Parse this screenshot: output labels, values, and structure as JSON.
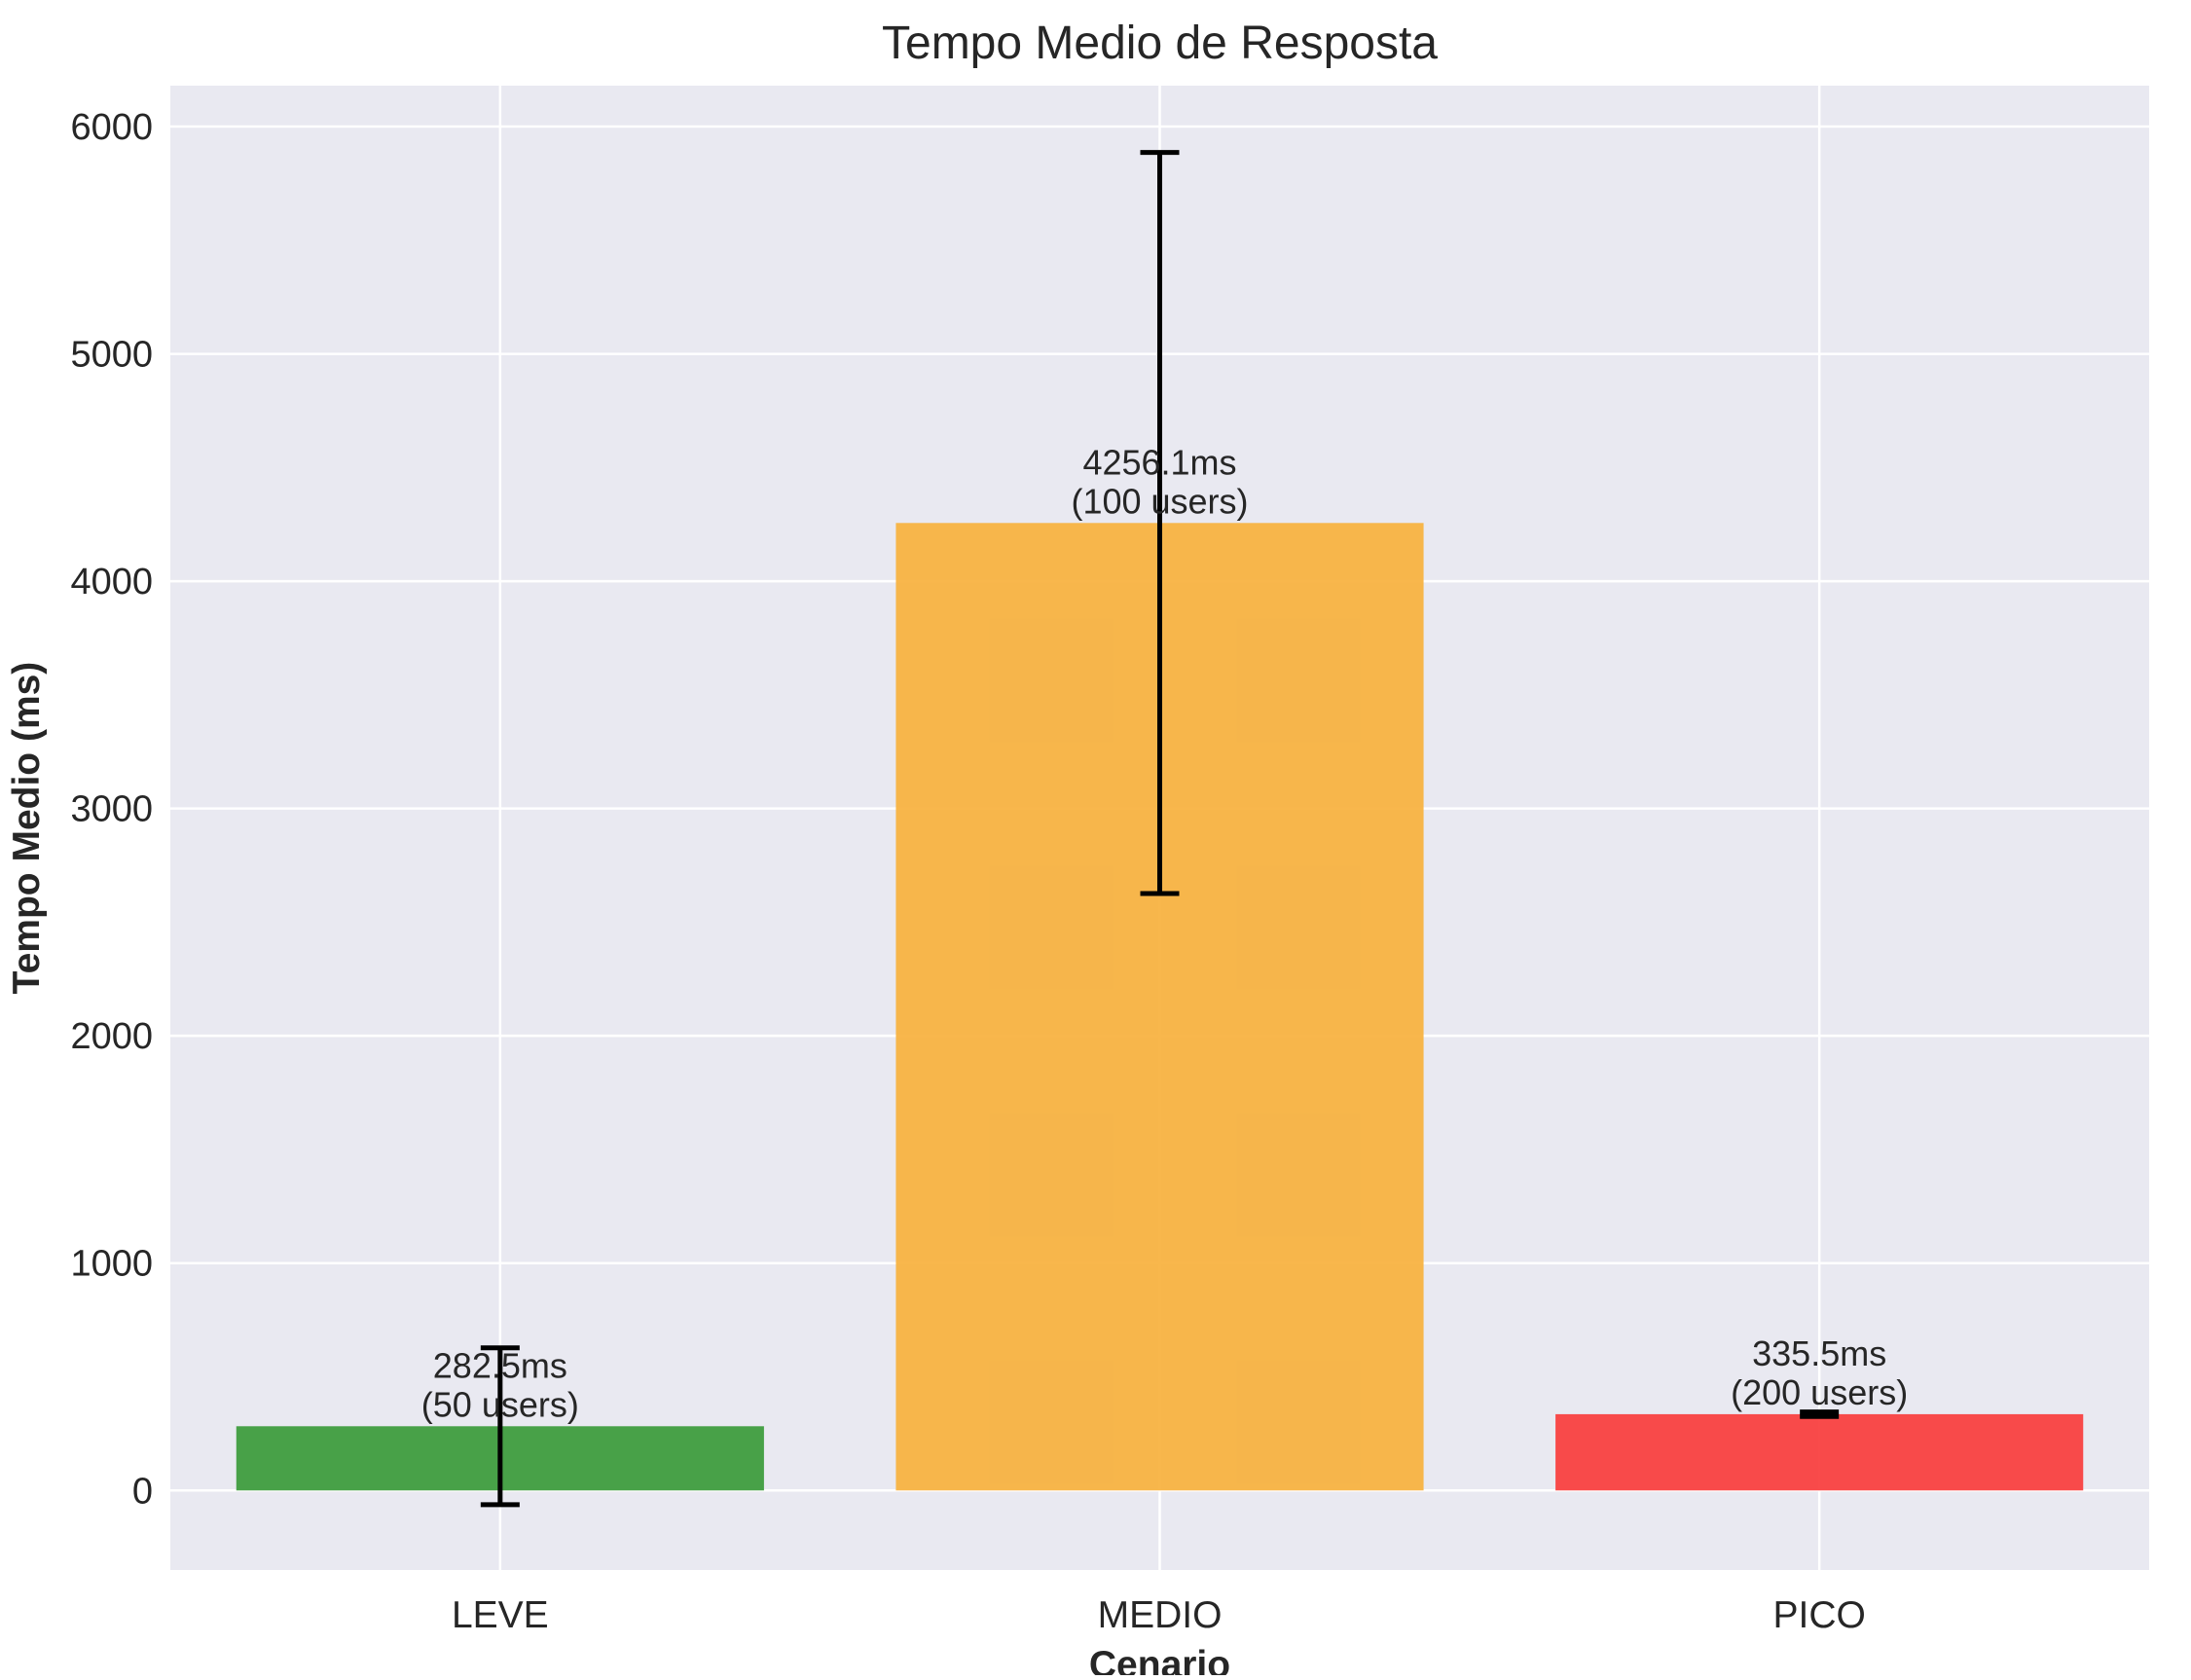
{
  "chart_data": {
    "type": "bar",
    "title": "Tempo Medio de Resposta",
    "xlabel": "Cenario",
    "ylabel": "Tempo Medio (ms)",
    "categories": [
      "LEVE",
      "MEDIO",
      "PICO"
    ],
    "values": [
      282.5,
      4256.1,
      335.5
    ],
    "errors": [
      345,
      1630,
      10
    ],
    "users": [
      50,
      100,
      200
    ],
    "bar_labels": [
      [
        "282.5ms",
        "(50 users)"
      ],
      [
        "4256.1ms",
        "(100 users)"
      ],
      [
        "335.5ms",
        "(200 users)"
      ]
    ],
    "colors": [
      "#3a9a3a",
      "#f7b13d",
      "#f83c3c"
    ],
    "ylim": [
      -350,
      6180
    ],
    "yticks": [
      0,
      1000,
      2000,
      3000,
      4000,
      5000,
      6000
    ],
    "grid": true,
    "legend": "none",
    "style": {
      "background": "#e9e9f1",
      "grid_color": "#ffffff",
      "errorbar_color": "#000000",
      "text_color": "#262626"
    }
  }
}
